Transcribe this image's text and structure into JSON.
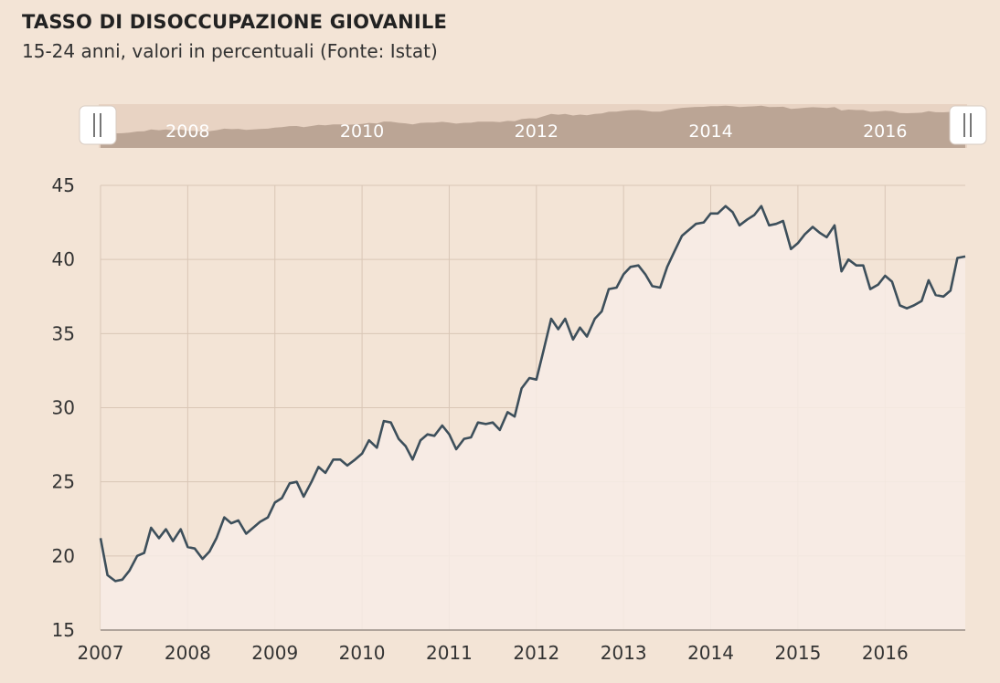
{
  "header": {
    "title": "TASSO DI DISOCCUPAZIONE GIOVANILE",
    "subtitle": "15-24 anni, valori in percentuali (Fonte: Istat)"
  },
  "navigator": {
    "labels": [
      "2008",
      "2010",
      "2012",
      "2014",
      "2016"
    ],
    "colors": {
      "track": "#e8d3c3",
      "fill": "#bba595"
    }
  },
  "chart_data": {
    "type": "area",
    "ylim": [
      15,
      45
    ],
    "xlim": [
      2007.0,
      2016.92
    ],
    "yticks": [
      15,
      20,
      25,
      30,
      35,
      40,
      45
    ],
    "xticks": [
      2007,
      2008,
      2009,
      2010,
      2011,
      2012,
      2013,
      2014,
      2015,
      2016
    ],
    "xtick_labels": [
      "2007",
      "2008",
      "2009",
      "2010",
      "2011",
      "2012",
      "2013",
      "2014",
      "2015",
      "2016"
    ],
    "ytick_labels": [
      "15",
      "20",
      "25",
      "30",
      "35",
      "40",
      "45"
    ],
    "grid": true,
    "colors": {
      "line": "#3d4f5b",
      "fill": "#f7ece6",
      "grid": "#d9c6b6",
      "axis": "#9a8f87"
    },
    "series": [
      {
        "values": [
          [
            2007.0,
            21.2
          ],
          [
            2007.08,
            18.7
          ],
          [
            2007.17,
            18.3
          ],
          [
            2007.25,
            18.4
          ],
          [
            2007.33,
            19.0
          ],
          [
            2007.42,
            20.0
          ],
          [
            2007.5,
            20.2
          ],
          [
            2007.58,
            21.9
          ],
          [
            2007.67,
            21.2
          ],
          [
            2007.75,
            21.8
          ],
          [
            2007.83,
            21.0
          ],
          [
            2007.92,
            21.8
          ],
          [
            2008.0,
            20.6
          ],
          [
            2008.08,
            20.5
          ],
          [
            2008.17,
            19.8
          ],
          [
            2008.25,
            20.3
          ],
          [
            2008.33,
            21.2
          ],
          [
            2008.42,
            22.6
          ],
          [
            2008.5,
            22.2
          ],
          [
            2008.58,
            22.4
          ],
          [
            2008.67,
            21.5
          ],
          [
            2008.75,
            21.9
          ],
          [
            2008.83,
            22.3
          ],
          [
            2008.92,
            22.6
          ],
          [
            2009.0,
            23.6
          ],
          [
            2009.08,
            23.9
          ],
          [
            2009.17,
            24.9
          ],
          [
            2009.25,
            25.0
          ],
          [
            2009.33,
            24.0
          ],
          [
            2009.42,
            25.0
          ],
          [
            2009.5,
            26.0
          ],
          [
            2009.58,
            25.6
          ],
          [
            2009.67,
            26.5
          ],
          [
            2009.75,
            26.5
          ],
          [
            2009.83,
            26.1
          ],
          [
            2009.92,
            26.5
          ],
          [
            2010.0,
            26.9
          ],
          [
            2010.08,
            27.8
          ],
          [
            2010.17,
            27.3
          ],
          [
            2010.25,
            29.1
          ],
          [
            2010.33,
            29.0
          ],
          [
            2010.42,
            27.9
          ],
          [
            2010.5,
            27.4
          ],
          [
            2010.58,
            26.5
          ],
          [
            2010.67,
            27.8
          ],
          [
            2010.75,
            28.2
          ],
          [
            2010.83,
            28.1
          ],
          [
            2010.92,
            28.8
          ],
          [
            2011.0,
            28.2
          ],
          [
            2011.08,
            27.2
          ],
          [
            2011.17,
            27.9
          ],
          [
            2011.25,
            28.0
          ],
          [
            2011.33,
            29.0
          ],
          [
            2011.42,
            28.9
          ],
          [
            2011.5,
            29.0
          ],
          [
            2011.58,
            28.5
          ],
          [
            2011.67,
            29.7
          ],
          [
            2011.75,
            29.4
          ],
          [
            2011.83,
            31.3
          ],
          [
            2011.92,
            32.0
          ],
          [
            2012.0,
            31.9
          ],
          [
            2012.08,
            33.8
          ],
          [
            2012.17,
            36.0
          ],
          [
            2012.25,
            35.3
          ],
          [
            2012.33,
            36.0
          ],
          [
            2012.42,
            34.6
          ],
          [
            2012.5,
            35.4
          ],
          [
            2012.58,
            34.8
          ],
          [
            2012.67,
            36.0
          ],
          [
            2012.75,
            36.5
          ],
          [
            2012.83,
            38.0
          ],
          [
            2012.92,
            38.1
          ],
          [
            2013.0,
            39.0
          ],
          [
            2013.08,
            39.5
          ],
          [
            2013.17,
            39.6
          ],
          [
            2013.25,
            39.0
          ],
          [
            2013.33,
            38.2
          ],
          [
            2013.42,
            38.1
          ],
          [
            2013.5,
            39.5
          ],
          [
            2013.58,
            40.5
          ],
          [
            2013.67,
            41.6
          ],
          [
            2013.75,
            42.0
          ],
          [
            2013.83,
            42.4
          ],
          [
            2013.92,
            42.5
          ],
          [
            2014.0,
            43.1
          ],
          [
            2014.08,
            43.1
          ],
          [
            2014.17,
            43.6
          ],
          [
            2014.25,
            43.2
          ],
          [
            2014.33,
            42.3
          ],
          [
            2014.42,
            42.7
          ],
          [
            2014.5,
            43.0
          ],
          [
            2014.58,
            43.6
          ],
          [
            2014.67,
            42.3
          ],
          [
            2014.75,
            42.4
          ],
          [
            2014.83,
            42.6
          ],
          [
            2014.92,
            40.7
          ],
          [
            2015.0,
            41.1
          ],
          [
            2015.08,
            41.7
          ],
          [
            2015.17,
            42.2
          ],
          [
            2015.25,
            41.8
          ],
          [
            2015.33,
            41.5
          ],
          [
            2015.42,
            42.3
          ],
          [
            2015.5,
            39.2
          ],
          [
            2015.58,
            40.0
          ],
          [
            2015.67,
            39.6
          ],
          [
            2015.75,
            39.6
          ],
          [
            2015.83,
            38.0
          ],
          [
            2015.92,
            38.3
          ],
          [
            2016.0,
            38.9
          ],
          [
            2016.08,
            38.5
          ],
          [
            2016.17,
            36.9
          ],
          [
            2016.25,
            36.7
          ],
          [
            2016.33,
            36.9
          ],
          [
            2016.42,
            37.2
          ],
          [
            2016.5,
            38.6
          ],
          [
            2016.58,
            37.6
          ],
          [
            2016.67,
            37.5
          ],
          [
            2016.75,
            37.9
          ],
          [
            2016.83,
            40.1
          ],
          [
            2016.92,
            40.2
          ]
        ]
      }
    ]
  }
}
